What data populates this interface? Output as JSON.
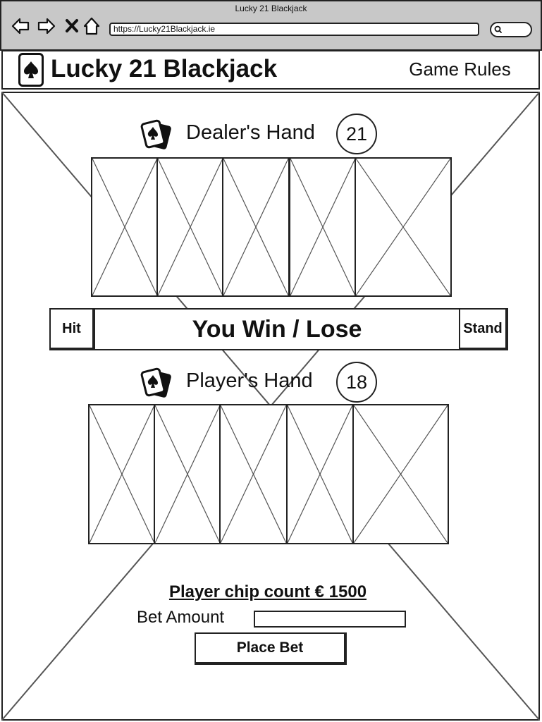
{
  "browser": {
    "window_title": "Lucky 21 Blackjack",
    "url": "https://Lucky21Blackjack.ie",
    "nav_icons": [
      "back-arrow-icon",
      "forward-arrow-icon",
      "close-icon",
      "home-icon"
    ],
    "search_icon": "search-icon"
  },
  "header": {
    "logo_icon": "spade-card-icon",
    "title": "Lucky 21 Blackjack",
    "rules_link": "Game Rules"
  },
  "dealer": {
    "icon": "playing-cards-icon",
    "label": "Dealer's Hand",
    "score": "21",
    "card_count": 5
  },
  "actions": {
    "hit_label": "Hit",
    "result_text": "You Win / Lose",
    "stand_label": "Stand"
  },
  "player": {
    "icon": "playing-cards-icon",
    "label": "Player's Hand",
    "score": "18",
    "card_count": 5
  },
  "betting": {
    "chip_count_text": "Player chip count € 1500",
    "bet_label": "Bet Amount",
    "bet_value": "",
    "place_bet_label": "Place Bet"
  },
  "colors": {
    "chrome_bg": "#c8c8c8",
    "stroke": "#222222",
    "background": "#ffffff"
  }
}
